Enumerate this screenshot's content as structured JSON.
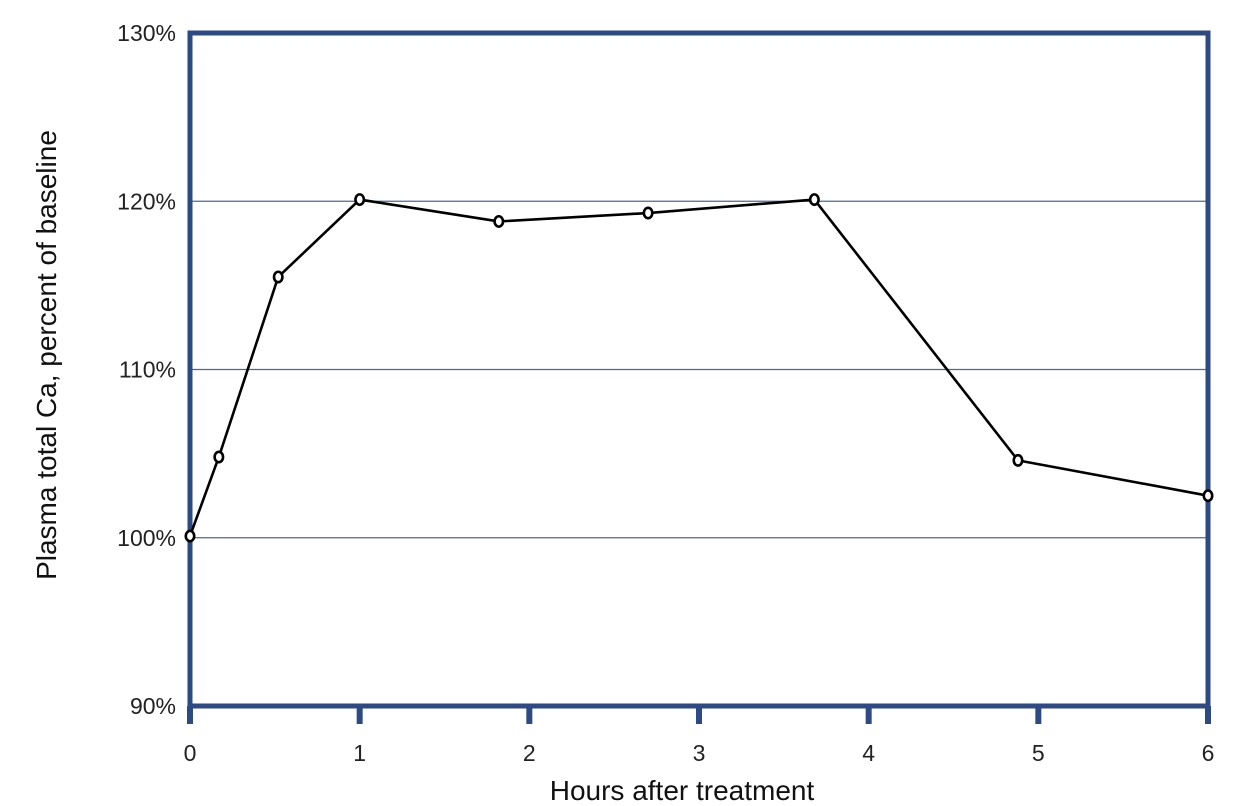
{
  "chart_data": {
    "type": "line",
    "title": "",
    "xlabel": "Hours after treatment",
    "ylabel": "Plasma total Ca, percent of baseline",
    "xlim": [
      0,
      6
    ],
    "ylim": [
      90,
      130
    ],
    "x_ticks": [
      0,
      1,
      2,
      3,
      4,
      5,
      6
    ],
    "x_tick_labels": [
      "0",
      "1",
      "2",
      "3",
      "4",
      "5",
      "6"
    ],
    "y_ticks": [
      90,
      100,
      110,
      120,
      130
    ],
    "y_tick_labels": [
      "90%",
      "100%",
      "110%",
      "120%",
      "130%"
    ],
    "y_gridlines": [
      100,
      110,
      120
    ],
    "grid": true,
    "legend": "none",
    "series": [
      {
        "x": [
          0,
          0.17,
          0.52,
          1.0,
          1.82,
          2.7,
          3.68,
          4.88,
          6.0
        ],
        "values": [
          100.1,
          104.8,
          115.5,
          120.1,
          118.8,
          119.3,
          120.1,
          104.6,
          102.5
        ]
      }
    ],
    "colors": {
      "frame": "#2e4a85",
      "gridline": "#4a6a95",
      "line": "#000000",
      "marker_fill": "#ffffff"
    }
  }
}
